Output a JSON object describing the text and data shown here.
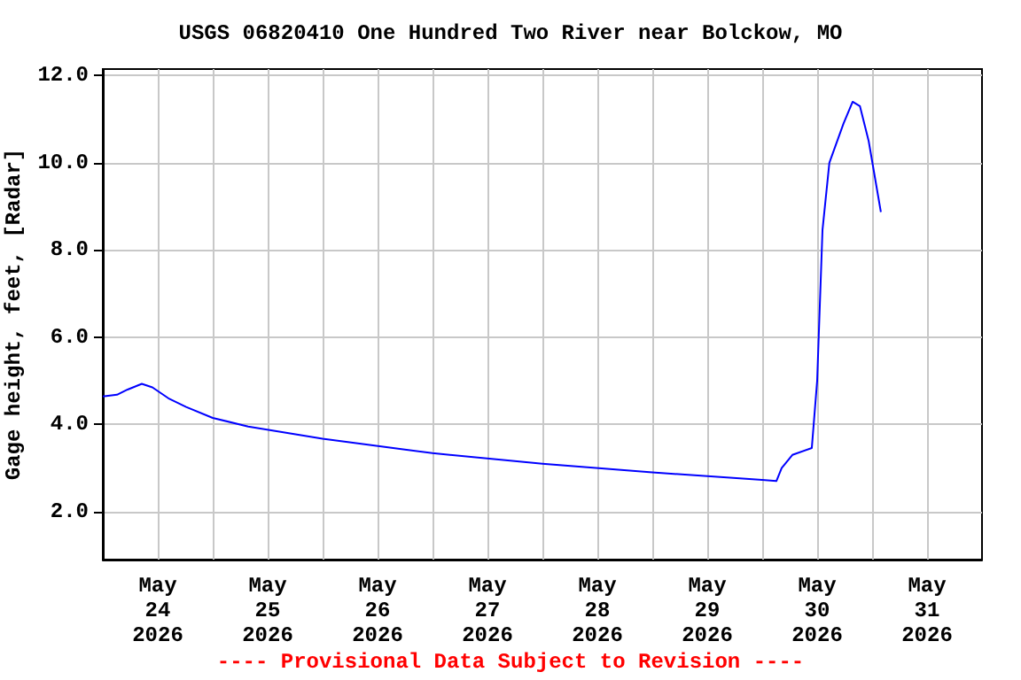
{
  "chart_data": {
    "type": "line",
    "title": "USGS 06820410 One Hundred Two River near Bolckow, MO",
    "ylabel": "Gage height, feet, [Radar]",
    "annotations": [
      "---- Provisional Data Subject to Revision ----"
    ],
    "x": [
      "2026-05-24T00:00",
      "2026-05-24T03:06",
      "2026-05-24T05:25",
      "2026-05-24T08:31",
      "2026-05-24T10:50",
      "2026-05-24T14:19",
      "2026-05-24T18:12",
      "2026-05-25T00:00",
      "2026-05-25T07:45",
      "2026-05-26T00:00",
      "2026-05-27T00:00",
      "2026-05-28T00:00",
      "2026-05-29T00:00",
      "2026-05-30T00:00",
      "2026-05-30T03:06",
      "2026-05-30T04:15",
      "2026-05-30T06:35",
      "2026-05-30T10:50",
      "2026-05-30T12:00",
      "2026-05-30T13:10",
      "2026-05-30T14:40",
      "2026-05-30T17:45",
      "2026-05-30T19:45",
      "2026-05-30T21:20",
      "2026-05-30T23:15",
      "2026-05-31T01:55"
    ],
    "series": [
      {
        "color": "#0000ff",
        "values": [
          4.64,
          4.68,
          4.8,
          4.93,
          4.85,
          4.6,
          4.4,
          4.15,
          3.95,
          3.67,
          3.34,
          3.1,
          2.9,
          2.73,
          2.7,
          3.0,
          3.3,
          3.46,
          5.0,
          8.46,
          10.0,
          10.9,
          11.4,
          11.3,
          10.5,
          8.87
        ]
      }
    ],
    "xlim": [
      "2026-05-24T00:00",
      "2026-06-01T00:00"
    ],
    "xticks": [
      {
        "value": "2026-05-24T12:00",
        "label": "May\n24\n2026"
      },
      {
        "value": "2026-05-25T00:00",
        "label": null
      },
      {
        "value": "2026-05-25T12:00",
        "label": "May\n25\n2026"
      },
      {
        "value": "2026-05-26T00:00",
        "label": null
      },
      {
        "value": "2026-05-26T12:00",
        "label": "May\n26\n2026"
      },
      {
        "value": "2026-05-27T00:00",
        "label": null
      },
      {
        "value": "2026-05-27T12:00",
        "label": "May\n27\n2026"
      },
      {
        "value": "2026-05-28T00:00",
        "label": null
      },
      {
        "value": "2026-05-28T12:00",
        "label": "May\n28\n2026"
      },
      {
        "value": "2026-05-29T00:00",
        "label": null
      },
      {
        "value": "2026-05-29T12:00",
        "label": "May\n29\n2026"
      },
      {
        "value": "2026-05-30T00:00",
        "label": null
      },
      {
        "value": "2026-05-30T12:00",
        "label": "May\n30\n2026"
      },
      {
        "value": "2026-05-31T00:00",
        "label": null
      },
      {
        "value": "2026-05-31T12:00",
        "label": "May\n31\n2026"
      }
    ],
    "ylim": [
      0.9,
      12.15
    ],
    "yticks": [
      {
        "value": 2,
        "label": "2.0"
      },
      {
        "value": 4,
        "label": "4.0"
      },
      {
        "value": 6,
        "label": "6.0"
      },
      {
        "value": 8,
        "label": "8.0"
      },
      {
        "value": 10,
        "label": "10.0"
      },
      {
        "value": 12,
        "label": "12.0"
      }
    ],
    "grid": true,
    "marker": "none",
    "line_style": "solid"
  }
}
